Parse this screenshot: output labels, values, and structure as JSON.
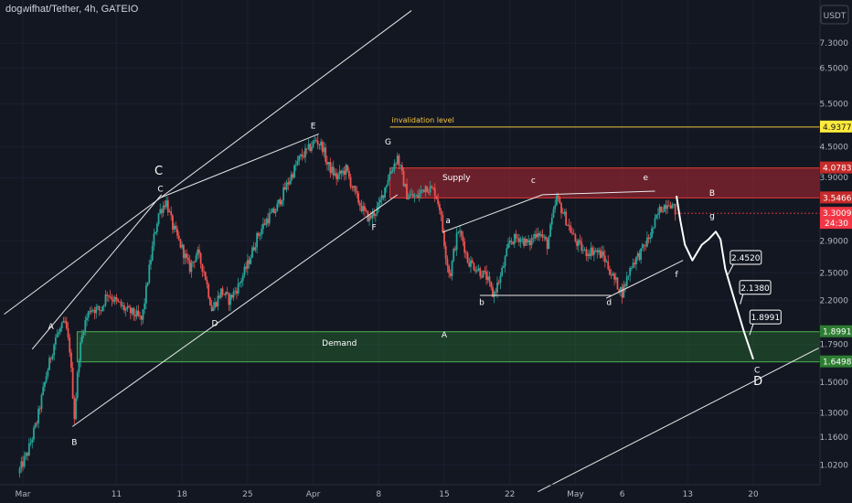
{
  "title": "dogwifhat/Tether, 4h, GATEIO",
  "currency_button": "USDT",
  "chart_data": {
    "type": "candlestick",
    "y_scale": "log",
    "ylim": [
      0.95,
      8.2
    ],
    "y_ticks": [
      {
        "v": 7.3,
        "t": "7.3000"
      },
      {
        "v": 6.5,
        "t": "6.5000"
      },
      {
        "v": 5.5,
        "t": "5.5000"
      },
      {
        "v": 4.5,
        "t": "4.5000"
      },
      {
        "v": 3.9,
        "t": "3.9000"
      },
      {
        "v": 2.9,
        "t": "2.9000"
      },
      {
        "v": 2.5,
        "t": "2.5000"
      },
      {
        "v": 2.2,
        "t": "2.2000"
      },
      {
        "v": 1.79,
        "t": "1.7900"
      },
      {
        "v": 1.5,
        "t": "1.5000"
      },
      {
        "v": 1.3,
        "t": "1.3000"
      },
      {
        "v": 1.16,
        "t": "1.1600"
      },
      {
        "v": 1.02,
        "t": "1.0200"
      }
    ],
    "x_range": [
      0,
      82
    ],
    "x_ticks": [
      {
        "d": 0,
        "t": "Mar"
      },
      {
        "d": 10,
        "t": "11"
      },
      {
        "d": 17,
        "t": "18"
      },
      {
        "d": 24,
        "t": "25"
      },
      {
        "d": 31,
        "t": "Apr"
      },
      {
        "d": 38,
        "t": "8"
      },
      {
        "d": 45,
        "t": "15"
      },
      {
        "d": 52,
        "t": "22"
      },
      {
        "d": 59,
        "t": "May"
      },
      {
        "d": 64,
        "t": "6"
      },
      {
        "d": 71,
        "t": "13"
      },
      {
        "d": 78,
        "t": "20"
      }
    ],
    "path": [
      [
        -0.5,
        0.98
      ],
      [
        0.5,
        1.08
      ],
      [
        1.5,
        1.25
      ],
      [
        2.5,
        1.55
      ],
      [
        3.5,
        1.85
      ],
      [
        4.5,
        1.98
      ],
      [
        5,
        1.75
      ],
      [
        5.5,
        1.28
      ],
      [
        6,
        1.7
      ],
      [
        6.5,
        1.95
      ],
      [
        7.2,
        2.12
      ],
      [
        8.3,
        2.1
      ],
      [
        9,
        2.28
      ],
      [
        10,
        2.18
      ],
      [
        11,
        2.1
      ],
      [
        12,
        2.06
      ],
      [
        12.7,
        2.0
      ],
      [
        13.3,
        2.4
      ],
      [
        14,
        2.95
      ],
      [
        14.5,
        3.3
      ],
      [
        15.3,
        3.5
      ],
      [
        16,
        3.1
      ],
      [
        17,
        2.8
      ],
      [
        17.8,
        2.55
      ],
      [
        18.6,
        2.75
      ],
      [
        19.4,
        2.5
      ],
      [
        20.2,
        2.1
      ],
      [
        21.2,
        2.3
      ],
      [
        22,
        2.2
      ],
      [
        23,
        2.35
      ],
      [
        24,
        2.6
      ],
      [
        25,
        2.95
      ],
      [
        26,
        3.2
      ],
      [
        27,
        3.35
      ],
      [
        28,
        3.7
      ],
      [
        29.5,
        4.25
      ],
      [
        30.5,
        4.45
      ],
      [
        31.3,
        4.65
      ],
      [
        32,
        4.5
      ],
      [
        32.5,
        4.15
      ],
      [
        33.5,
        3.9
      ],
      [
        34.5,
        4.05
      ],
      [
        35.5,
        3.6
      ],
      [
        36.5,
        3.3
      ],
      [
        37,
        3.22
      ],
      [
        38,
        3.4
      ],
      [
        39,
        3.9
      ],
      [
        40,
        4.3
      ],
      [
        41,
        3.6
      ],
      [
        42,
        3.55
      ],
      [
        43,
        3.75
      ],
      [
        44,
        3.65
      ],
      [
        44.5,
        3.4
      ],
      [
        45.2,
        2.7
      ],
      [
        45.6,
        2.45
      ],
      [
        46,
        2.75
      ],
      [
        46.5,
        3.05
      ],
      [
        47,
        2.9
      ],
      [
        47.5,
        2.65
      ],
      [
        48.5,
        2.55
      ],
      [
        49.5,
        2.45
      ],
      [
        50.2,
        2.25
      ],
      [
        51,
        2.45
      ],
      [
        52,
        2.9
      ],
      [
        53,
        2.95
      ],
      [
        54,
        2.85
      ],
      [
        55,
        3.05
      ],
      [
        56,
        2.85
      ],
      [
        57,
        3.55
      ],
      [
        58,
        3.2
      ],
      [
        59,
        2.9
      ],
      [
        60,
        2.75
      ],
      [
        61,
        2.78
      ],
      [
        62,
        2.7
      ],
      [
        63,
        2.45
      ],
      [
        64,
        2.28
      ],
      [
        65,
        2.6
      ],
      [
        66,
        2.75
      ],
      [
        67,
        2.98
      ],
      [
        68,
        3.35
      ],
      [
        69,
        3.5
      ],
      [
        69.8,
        3.3
      ]
    ],
    "current_price": 3.3009,
    "countdown": "24:30",
    "zones": [
      {
        "name": "Supply",
        "low": 3.5466,
        "high": 4.0783,
        "start": 39.2
      },
      {
        "name": "Demand",
        "low": 1.6498,
        "high": 1.8991,
        "start": 5.8
      }
    ],
    "invalidation": {
      "label": "invalidation level",
      "value": 4.9377,
      "start": 39.2
    },
    "price_tags": [
      {
        "v": 4.9377,
        "t": "4.9377",
        "bg": "#ffeb3b",
        "fg": "#131722"
      },
      {
        "v": 4.0783,
        "t": "4.0783",
        "bg": "#c62a2a",
        "fg": "#ffffff"
      },
      {
        "v": 3.5466,
        "t": "3.5466",
        "bg": "#c62a2a",
        "fg": "#ffffff"
      },
      {
        "v": 1.8991,
        "t": "1.8991",
        "bg": "#2e7d32",
        "fg": "#ffffff"
      },
      {
        "v": 1.6498,
        "t": "1.6498",
        "bg": "#2e7d32",
        "fg": "#ffffff"
      }
    ],
    "current_tag": {
      "t": "3.3009",
      "bg": "#f23645",
      "fg": "#ffffff"
    },
    "lines": [
      [
        [
          -2,
          2.06
        ],
        [
          41.5,
          8.5
        ]
      ],
      [
        [
          1,
          1.75
        ],
        [
          14.8,
          3.6
        ]
      ],
      [
        [
          14.7,
          3.55
        ],
        [
          31.6,
          4.78
        ]
      ],
      [
        [
          5.3,
          1.22
        ],
        [
          40,
          3.6
        ]
      ],
      [
        [
          44.8,
          3.02
        ],
        [
          55.5,
          3.6
        ]
      ],
      [
        [
          55.5,
          3.6
        ],
        [
          67.5,
          3.66
        ]
      ],
      [
        [
          48.8,
          2.25
        ],
        [
          62.8,
          2.25
        ]
      ],
      [
        [
          62.3,
          2.22
        ],
        [
          70.5,
          2.65
        ]
      ],
      [
        [
          55,
          0.9
        ],
        [
          85,
          1.76
        ]
      ]
    ],
    "forecast": [
      [
        69.8,
        3.58
      ],
      [
        70.2,
        3.2
      ],
      [
        70.7,
        2.85
      ],
      [
        71.5,
        2.65
      ],
      [
        72.5,
        2.85
      ],
      [
        73.2,
        2.92
      ],
      [
        74,
        3.03
      ],
      [
        74.5,
        2.92
      ],
      [
        75,
        2.55
      ],
      [
        76,
        2.2
      ],
      [
        77,
        1.9
      ],
      [
        78,
        1.67
      ]
    ],
    "wave_labels": [
      {
        "d": 3,
        "v": 1.92,
        "t": "A",
        "big": false
      },
      {
        "d": 5.5,
        "v": 1.12,
        "t": "B",
        "big": false
      },
      {
        "d": 14.5,
        "v": 3.95,
        "t": "C",
        "big": true
      },
      {
        "d": 14.7,
        "v": 3.65,
        "t": "C",
        "big": false
      },
      {
        "d": 20.5,
        "v": 1.95,
        "t": "D",
        "big": false
      },
      {
        "d": 31,
        "v": 4.9,
        "t": "E",
        "big": false
      },
      {
        "d": 37.5,
        "v": 3.05,
        "t": "F",
        "big": false
      },
      {
        "d": 39,
        "v": 4.55,
        "t": "G",
        "big": false
      },
      {
        "d": 45,
        "v": 1.85,
        "t": "A",
        "big": false
      },
      {
        "d": 45.4,
        "v": 3.15,
        "t": "a",
        "big": false
      },
      {
        "d": 49,
        "v": 2.15,
        "t": "b",
        "big": false
      },
      {
        "d": 54.5,
        "v": 3.8,
        "t": "c",
        "big": false
      },
      {
        "d": 62.6,
        "v": 2.15,
        "t": "d",
        "big": false
      },
      {
        "d": 66.5,
        "v": 3.85,
        "t": "e",
        "big": false
      },
      {
        "d": 69.8,
        "v": 2.45,
        "t": "f",
        "big": false
      },
      {
        "d": 73.6,
        "v": 3.22,
        "t": "g",
        "big": false
      },
      {
        "d": 73.6,
        "v": 3.58,
        "t": "B",
        "big": false
      },
      {
        "d": 78.4,
        "v": 1.57,
        "t": "C",
        "big": false
      },
      {
        "d": 78.5,
        "v": 1.48,
        "t": "D",
        "big": true
      }
    ],
    "callouts": [
      {
        "d": 77.1,
        "v": 2.68,
        "t": "2.4520",
        "ad": 75.3,
        "av": 2.48
      },
      {
        "d": 78.1,
        "v": 2.33,
        "t": "2.1380",
        "ad": 76.6,
        "av": 2.16
      },
      {
        "d": 79.2,
        "v": 2.03,
        "t": "1.8991",
        "ad": 77.6,
        "av": 1.87
      }
    ],
    "zone_label_positions": {
      "Supply": [
        46.3,
        3.85
      ],
      "Demand": [
        33.8,
        1.78
      ]
    }
  }
}
